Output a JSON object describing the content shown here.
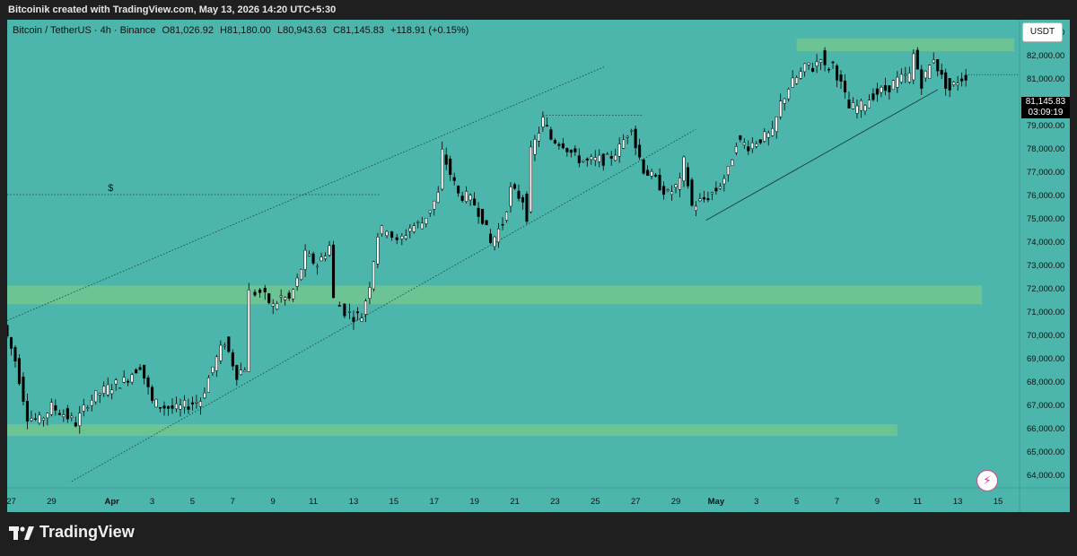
{
  "header": {
    "attribution": "Bitcoinik created with TradingView.com, May 13, 2026 14:20 UTC+5:30"
  },
  "legend": {
    "symbol": "Bitcoin / TetherUS · 4h · Binance",
    "open": "O81,026.92",
    "high": "H81,180.00",
    "low": "L80,943.63",
    "close": "C81,145.83",
    "change": "+118.91 (+0.15%)"
  },
  "currency": "USDT",
  "last_price": {
    "value": "81,145.83",
    "countdown": "03:09:19"
  },
  "annotation_dollar": "$",
  "footer": {
    "brand": "TradingView"
  },
  "colors": {
    "background": "#4db6ac",
    "zone": "#6cc394",
    "candle_up": "#ffffff",
    "candle_down": "#000000"
  },
  "icons": [
    "tradingview-logo-icon",
    "lightning-bolt-icon"
  ],
  "chart_data": {
    "type": "candlestick",
    "interval": "4h",
    "ylim": [
      63500,
      83500
    ],
    "y_ticks": [
      "64,000.00",
      "65,000.00",
      "66,000.00",
      "67,000.00",
      "68,000.00",
      "69,000.00",
      "70,000.00",
      "71,000.00",
      "72,000.00",
      "73,000.00",
      "74,000.00",
      "75,000.00",
      "76,000.00",
      "77,000.00",
      "78,000.00",
      "79,000.00",
      "80,000.00",
      "81,000.00",
      "82,000.00",
      "83,000.00"
    ],
    "x_ticks": [
      "27",
      "29",
      "Apr",
      "3",
      "5",
      "7",
      "9",
      "11",
      "13",
      "15",
      "17",
      "19",
      "21",
      "23",
      "25",
      "27",
      "29",
      "May",
      "3",
      "5",
      "7",
      "9",
      "11",
      "13",
      "15"
    ],
    "x_tick_days": [
      27,
      29,
      32,
      34,
      36,
      38,
      40,
      42,
      44,
      46,
      48,
      50,
      52,
      54,
      56,
      58,
      60,
      62,
      64,
      66,
      68,
      70,
      72,
      74,
      76
    ],
    "x_range_days": [
      26.8,
      76.8
    ],
    "series_path_days": [
      [
        26.8,
        70.4
      ],
      [
        27.4,
        68.9
      ],
      [
        28.0,
        66.5
      ],
      [
        28.6,
        66.3
      ],
      [
        29.2,
        66.9
      ],
      [
        29.8,
        66.6
      ],
      [
        30.4,
        66.2
      ],
      [
        31.0,
        67.1
      ],
      [
        31.6,
        67.5
      ],
      [
        32.2,
        67.8
      ],
      [
        32.8,
        68.0
      ],
      [
        33.6,
        68.7
      ],
      [
        34.2,
        67.1
      ],
      [
        34.8,
        66.9
      ],
      [
        35.4,
        66.8
      ],
      [
        36.0,
        67.0
      ],
      [
        36.6,
        67.2
      ],
      [
        37.2,
        68.6
      ],
      [
        37.8,
        69.7
      ],
      [
        38.4,
        68.3
      ],
      [
        38.8,
        68.6
      ],
      [
        39.1,
        71.8
      ],
      [
        39.6,
        71.8
      ],
      [
        40.2,
        71.2
      ],
      [
        40.6,
        71.6
      ],
      [
        41.0,
        71.5
      ],
      [
        41.4,
        72.3
      ],
      [
        41.8,
        73.4
      ],
      [
        42.4,
        73.0
      ],
      [
        43.0,
        73.8
      ],
      [
        43.3,
        71.5
      ],
      [
        43.8,
        71.0
      ],
      [
        44.2,
        70.8
      ],
      [
        44.6,
        70.8
      ],
      [
        45.0,
        72.2
      ],
      [
        45.4,
        74.3
      ],
      [
        45.9,
        74.6
      ],
      [
        46.4,
        73.9
      ],
      [
        47.0,
        74.6
      ],
      [
        47.6,
        74.8
      ],
      [
        48.0,
        75.4
      ],
      [
        48.4,
        76.0
      ],
      [
        48.6,
        77.8
      ],
      [
        49.0,
        76.9
      ],
      [
        49.4,
        76.0
      ],
      [
        49.8,
        75.9
      ],
      [
        50.2,
        75.6
      ],
      [
        50.6,
        75.0
      ],
      [
        51.0,
        73.9
      ],
      [
        51.6,
        74.8
      ],
      [
        52.0,
        76.2
      ],
      [
        52.6,
        75.8
      ],
      [
        52.8,
        75.1
      ],
      [
        53.0,
        77.8
      ],
      [
        53.6,
        79.2
      ],
      [
        54.0,
        78.4
      ],
      [
        54.6,
        78.2
      ],
      [
        55.2,
        77.6
      ],
      [
        55.8,
        77.4
      ],
      [
        56.4,
        77.5
      ],
      [
        56.8,
        77.5
      ],
      [
        57.4,
        78.0
      ],
      [
        58.0,
        79.0
      ],
      [
        58.2,
        78.1
      ],
      [
        58.6,
        77.1
      ],
      [
        59.2,
        76.6
      ],
      [
        59.8,
        76.0
      ],
      [
        60.4,
        76.5
      ],
      [
        60.6,
        77.4
      ],
      [
        61.0,
        75.5
      ],
      [
        61.6,
        75.8
      ],
      [
        62.2,
        76.2
      ],
      [
        62.8,
        77.0
      ],
      [
        63.2,
        78.3
      ],
      [
        63.8,
        78.1
      ],
      [
        64.4,
        78.4
      ],
      [
        65.0,
        78.6
      ],
      [
        65.4,
        79.9
      ],
      [
        65.8,
        80.6
      ],
      [
        66.4,
        81.2
      ],
      [
        66.8,
        81.6
      ],
      [
        67.0,
        81.4
      ],
      [
        67.4,
        82.0
      ],
      [
        67.6,
        81.4
      ],
      [
        68.0,
        81.6
      ],
      [
        68.4,
        80.7
      ],
      [
        68.8,
        79.7
      ],
      [
        69.4,
        79.8
      ],
      [
        70.0,
        80.3
      ],
      [
        70.6,
        80.5
      ],
      [
        71.2,
        80.9
      ],
      [
        71.8,
        81.1
      ],
      [
        72.0,
        82.0
      ],
      [
        72.4,
        80.8
      ],
      [
        72.8,
        81.5
      ],
      [
        73.0,
        81.9
      ],
      [
        73.4,
        81.0
      ],
      [
        73.8,
        80.5
      ],
      [
        74.2,
        80.9
      ],
      [
        74.6,
        81.1
      ]
    ],
    "annotations": {
      "supply_zone": [
        82.15,
        82.7
      ],
      "mid_zone": [
        71.3,
        72.1
      ],
      "demand_zone": [
        65.65,
        66.15
      ],
      "channel_upper_points": [
        [
          26.8,
          70.6
        ],
        [
          56.5,
          81.5
        ]
      ],
      "channel_lower_points": [
        [
          30.0,
          63.7
        ],
        [
          61.0,
          78.8
        ]
      ],
      "mid_trendline_points": [
        [
          61.5,
          74.9
        ],
        [
          73.0,
          80.5
        ]
      ],
      "dotted_level": 76.0,
      "dotted_top": 79.4
    }
  }
}
